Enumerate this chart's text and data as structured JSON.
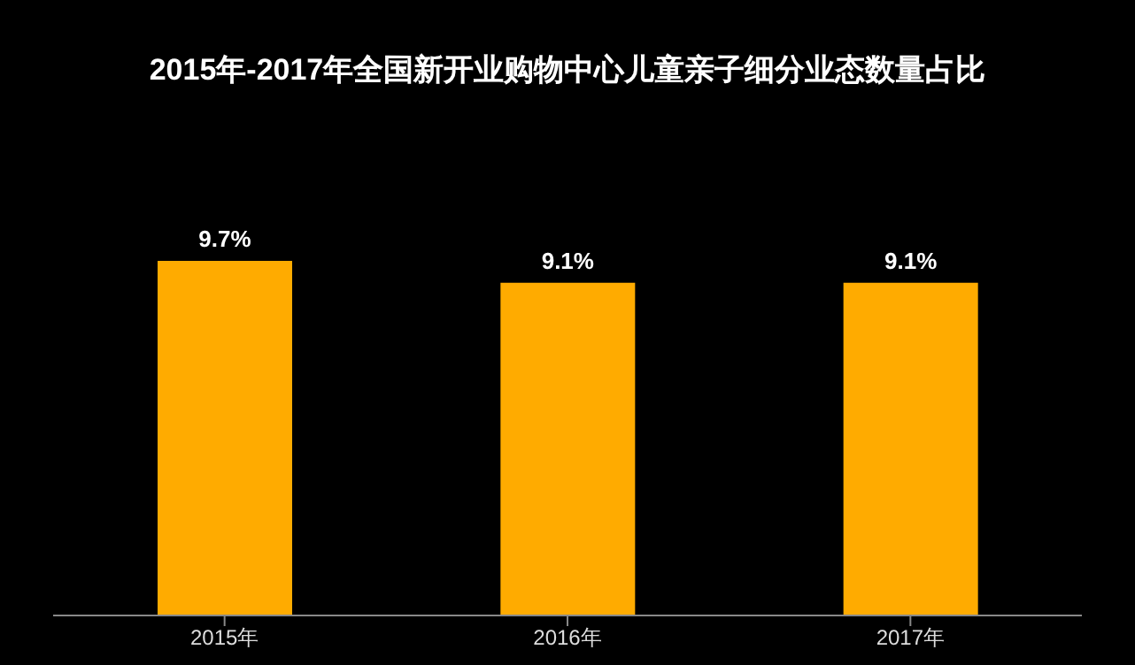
{
  "chart_data": {
    "type": "bar",
    "title": "2015年-2017年全国新开业购物中心儿童亲子细分业态数量占比",
    "categories": [
      "2015年",
      "2016年",
      "2017年"
    ],
    "values": [
      9.7,
      9.1,
      9.1
    ],
    "value_labels": [
      "9.7%",
      "9.1%",
      "9.1%"
    ],
    "color": "#ffab00",
    "grid": false,
    "legend": false
  }
}
